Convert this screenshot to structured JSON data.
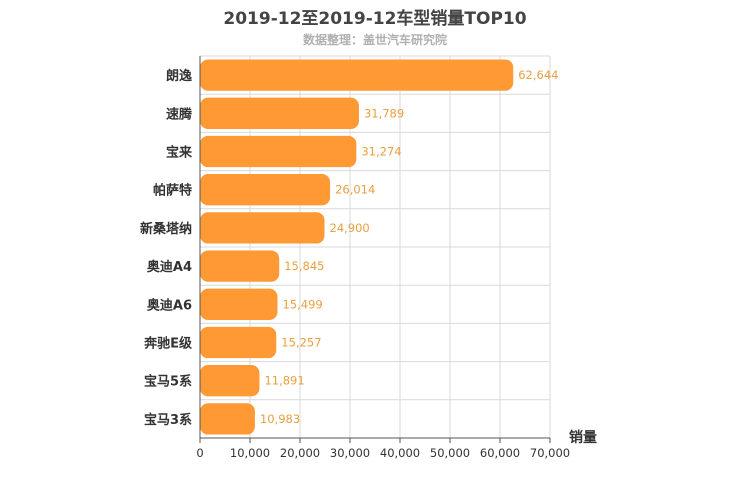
{
  "chart_data": {
    "type": "bar",
    "orientation": "horizontal",
    "title": "2019-12至2019-12车型销量TOP10",
    "subtitle": "数据整理：盖世汽车研究院",
    "xlabel": "销量",
    "ylabel": "",
    "categories": [
      "朗逸",
      "速腾",
      "宝来",
      "帕萨特",
      "新桑塔纳",
      "奥迪A4",
      "奥迪A6",
      "奔驰E级",
      "宝马5系",
      "宝马3系"
    ],
    "values": [
      62644,
      31789,
      31274,
      26014,
      24900,
      15845,
      15499,
      15257,
      11891,
      10983
    ],
    "value_labels": [
      "62,644",
      "31,789",
      "31,274",
      "26,014",
      "24,900",
      "15,845",
      "15,499",
      "15,257",
      "11,891",
      "10,983"
    ],
    "xlim": [
      0,
      70000
    ],
    "xticks": [
      0,
      10000,
      20000,
      30000,
      40000,
      50000,
      60000,
      70000
    ],
    "xtick_labels": [
      "0",
      "10,000",
      "20,000",
      "30,000",
      "40,000",
      "50,000",
      "60,000",
      "70,000"
    ],
    "grid": true,
    "bar_color": "#ff9933",
    "value_label_color": "#e8a040"
  }
}
